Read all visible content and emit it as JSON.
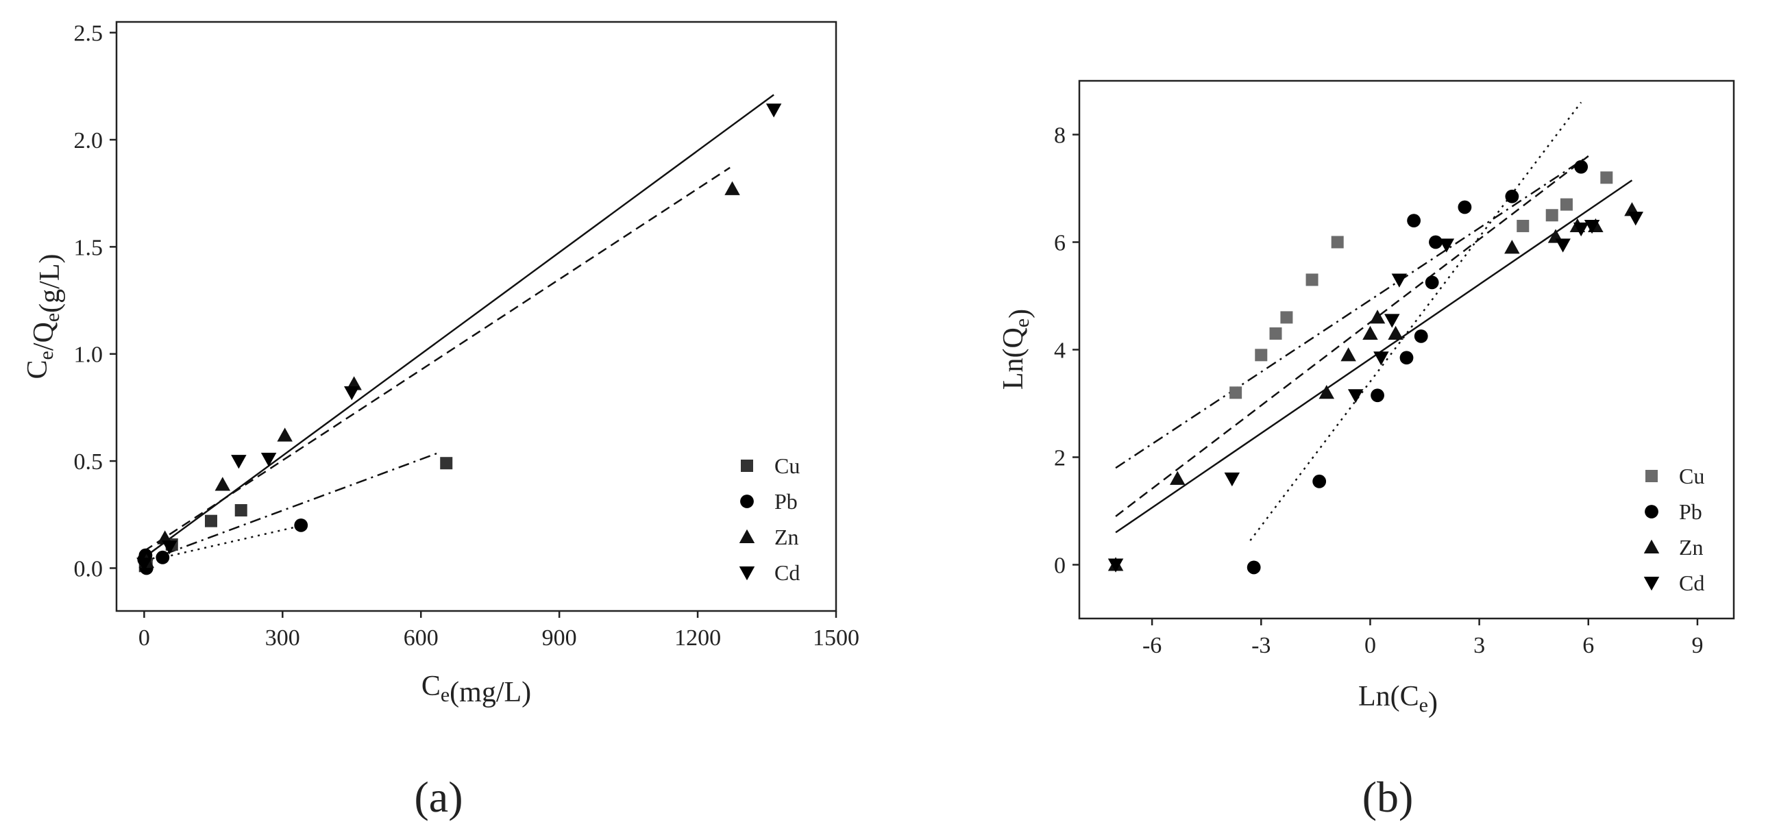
{
  "panel_labels": {
    "a": "(a)",
    "b": "(b)"
  },
  "colors": {
    "Cu": "#333333",
    "Pb": "#000000",
    "Zn": "#111111",
    "Cd": "#000000",
    "Cu_b": "#6b6b6b"
  },
  "chart_data": [
    {
      "type": "scatter",
      "xlabel": "Ce(mg/L)",
      "ylabel": "Ce/Qe(g/L)",
      "xlim": [
        -60,
        1500
      ],
      "ylim": [
        -0.2,
        2.55
      ],
      "xticks": [
        0,
        300,
        600,
        900,
        1200,
        1500
      ],
      "yticks": [
        0.0,
        0.5,
        1.0,
        1.5,
        2.0,
        2.5
      ],
      "xtick_labels": [
        "0",
        "300",
        "600",
        "900",
        "1200",
        "1500"
      ],
      "ytick_labels": [
        "0.0",
        "0.5",
        "1.0",
        "1.5",
        "2.0",
        "2.5"
      ],
      "legend_position": "bottom-right",
      "series": [
        {
          "name": "Cu",
          "marker": "square",
          "line": "dashdot",
          "points": [
            [
              2,
              0.01
            ],
            [
              5,
              0.02
            ],
            [
              60,
              0.11
            ],
            [
              145,
              0.22
            ],
            [
              210,
              0.27
            ],
            [
              655,
              0.49
            ]
          ],
          "fit": [
            [
              0,
              0.03
            ],
            [
              640,
              0.54
            ]
          ]
        },
        {
          "name": "Pb",
          "marker": "circle",
          "line": "dotted",
          "points": [
            [
              0,
              0.04
            ],
            [
              3,
              0.06
            ],
            [
              5,
              0.0
            ],
            [
              40,
              0.05
            ],
            [
              340,
              0.2
            ]
          ],
          "fit": [
            [
              0,
              0.03
            ],
            [
              345,
              0.2
            ]
          ]
        },
        {
          "name": "Zn",
          "marker": "triangle-up",
          "line": "dashed",
          "points": [
            [
              5,
              0.03
            ],
            [
              45,
              0.14
            ],
            [
              170,
              0.39
            ],
            [
              305,
              0.62
            ],
            [
              455,
              0.86
            ],
            [
              1275,
              1.77
            ]
          ],
          "fit": [
            [
              0,
              0.08
            ],
            [
              1270,
              1.87
            ]
          ]
        },
        {
          "name": "Cd",
          "marker": "triangle-down",
          "line": "solid",
          "points": [
            [
              0,
              0.02
            ],
            [
              55,
              0.1
            ],
            [
              205,
              0.5
            ],
            [
              270,
              0.51
            ],
            [
              450,
              0.82
            ],
            [
              1365,
              2.14
            ]
          ],
          "fit": [
            [
              0,
              0.05
            ],
            [
              1365,
              2.21
            ]
          ]
        }
      ]
    },
    {
      "type": "scatter",
      "xlabel": "Ln(Ce)",
      "ylabel": "Ln(Qe)",
      "xlim": [
        -8,
        10
      ],
      "ylim": [
        -1,
        9
      ],
      "xticks": [
        -6,
        -3,
        0,
        3,
        6,
        9
      ],
      "yticks": [
        0,
        2,
        4,
        6,
        8
      ],
      "xtick_labels": [
        "-6",
        "-3",
        "0",
        "3",
        "6",
        "9"
      ],
      "ytick_labels": [
        "0",
        "2",
        "4",
        "6",
        "8"
      ],
      "legend_position": "bottom-right",
      "series": [
        {
          "name": "Cu",
          "marker": "square",
          "line": "dashdot",
          "points": [
            [
              -3.7,
              3.2
            ],
            [
              -3.0,
              3.9
            ],
            [
              -2.6,
              4.3
            ],
            [
              -2.3,
              4.6
            ],
            [
              -1.6,
              5.3
            ],
            [
              -0.9,
              6.0
            ],
            [
              4.2,
              6.3
            ],
            [
              5.0,
              6.5
            ],
            [
              5.4,
              6.7
            ],
            [
              6.5,
              7.2
            ]
          ],
          "fit": [
            [
              -7.0,
              1.8
            ],
            [
              6.0,
              7.6
            ]
          ]
        },
        {
          "name": "Pb",
          "marker": "circle",
          "line": "dashed",
          "points": [
            [
              -3.2,
              -0.05
            ],
            [
              -1.4,
              1.55
            ],
            [
              0.2,
              3.15
            ],
            [
              1.0,
              3.85
            ],
            [
              1.4,
              4.25
            ],
            [
              1.7,
              5.25
            ],
            [
              1.2,
              6.4
            ],
            [
              2.6,
              6.65
            ],
            [
              1.8,
              6.0
            ],
            [
              3.9,
              6.85
            ],
            [
              5.8,
              7.4
            ]
          ],
          "fit": [
            [
              -7.0,
              0.9
            ],
            [
              6.0,
              7.6
            ]
          ]
        },
        {
          "name": "Zn",
          "marker": "triangle-up",
          "line": "solid",
          "points": [
            [
              -7.0,
              0.0
            ],
            [
              -5.3,
              1.6
            ],
            [
              -1.2,
              3.2
            ],
            [
              -0.6,
              3.9
            ],
            [
              0.0,
              4.3
            ],
            [
              0.2,
              4.6
            ],
            [
              0.7,
              4.3
            ],
            [
              3.9,
              5.9
            ],
            [
              5.1,
              6.1
            ],
            [
              5.7,
              6.3
            ],
            [
              6.2,
              6.3
            ],
            [
              7.2,
              6.6
            ]
          ],
          "fit": [
            [
              -7.0,
              0.6
            ],
            [
              7.2,
              7.15
            ]
          ]
        },
        {
          "name": "Cd",
          "marker": "triangle-down",
          "line": "dotted",
          "points": [
            [
              -7.0,
              0.0
            ],
            [
              -3.8,
              1.6
            ],
            [
              -0.4,
              3.15
            ],
            [
              0.3,
              3.85
            ],
            [
              0.6,
              4.55
            ],
            [
              0.8,
              5.3
            ],
            [
              2.1,
              5.95
            ],
            [
              5.3,
              5.95
            ],
            [
              5.8,
              6.25
            ],
            [
              6.1,
              6.3
            ],
            [
              7.3,
              6.45
            ]
          ],
          "fit": [
            [
              -3.3,
              0.45
            ],
            [
              5.8,
              8.6
            ]
          ]
        }
      ]
    }
  ]
}
